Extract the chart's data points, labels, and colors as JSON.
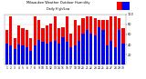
{
  "title": "Milwaukee Weather Outdoor Humidity",
  "subtitle": "Daily High/Low",
  "high_color": "#ff0000",
  "low_color": "#0000ff",
  "background_color": "#ffffff",
  "grid_color": "#cccccc",
  "ylim": [
    0,
    100
  ],
  "yticks": [
    20,
    40,
    60,
    80,
    100
  ],
  "days": [
    "1",
    "2",
    "3",
    "4",
    "5",
    "6",
    "7",
    "8",
    "9",
    "10",
    "11",
    "12",
    "13",
    "14",
    "15",
    "16",
    "17",
    "18",
    "19",
    "20",
    "21",
    "22",
    "23",
    "24",
    "25",
    "26",
    "27",
    "28",
    "29",
    "30"
  ],
  "highs": [
    68,
    95,
    52,
    78,
    72,
    68,
    52,
    95,
    88,
    72,
    78,
    82,
    95,
    72,
    75,
    95,
    62,
    88,
    78,
    92,
    95,
    95,
    92,
    88,
    88,
    88,
    95,
    95,
    92,
    72
  ],
  "lows": [
    42,
    38,
    32,
    40,
    38,
    35,
    28,
    38,
    50,
    45,
    42,
    45,
    48,
    42,
    55,
    45,
    35,
    38,
    48,
    62,
    68,
    62,
    58,
    75,
    68,
    38,
    48,
    35,
    68,
    42
  ]
}
